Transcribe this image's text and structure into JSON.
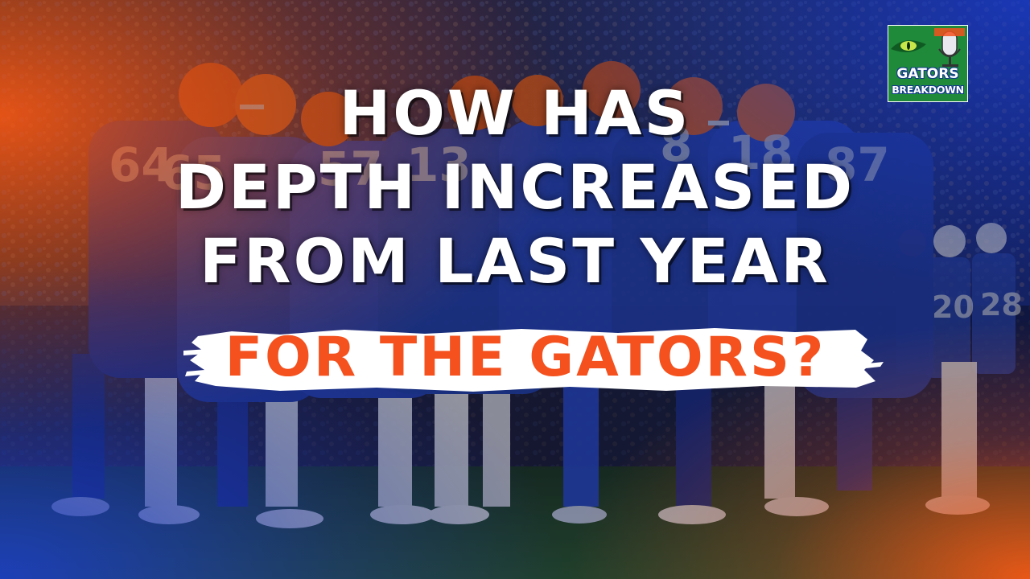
{
  "headline": {
    "line1": "HOW HAS",
    "line2": "DEPTH INCREASED",
    "line3": "FROM LAST YEAR"
  },
  "banner": {
    "text": "FOR THE GATORS?"
  },
  "logo": {
    "line1": "GATORS",
    "line2": "BREAKDOWN"
  },
  "players": [
    {
      "number": "64"
    },
    {
      "number": "65"
    },
    {
      "number": "57"
    },
    {
      "number": "13"
    },
    {
      "number": "8"
    },
    {
      "number": "18"
    },
    {
      "number": "87"
    },
    {
      "number": "20"
    },
    {
      "number": "28"
    }
  ],
  "colors": {
    "orange": "#f4511e",
    "blue": "#1f3fa8",
    "white": "#ffffff",
    "field": "#2d5a34"
  }
}
